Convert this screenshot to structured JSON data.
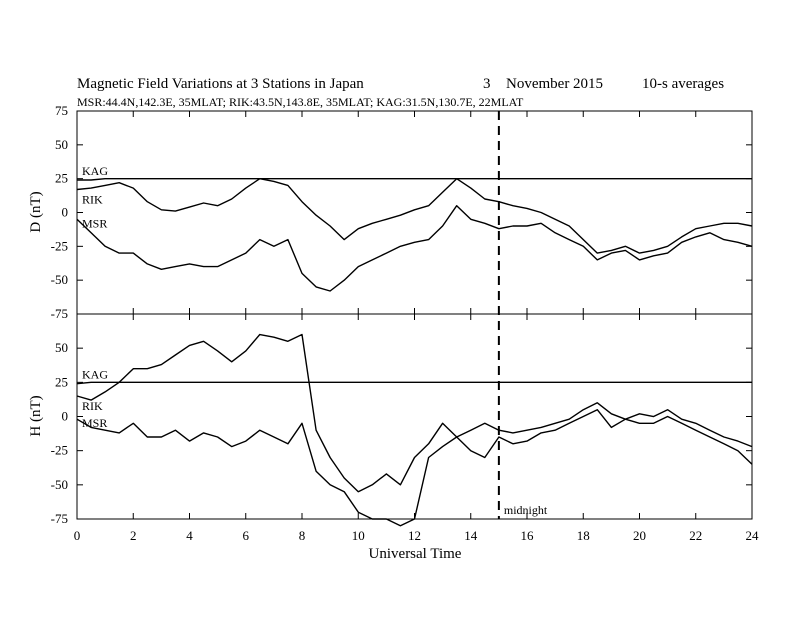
{
  "chart_data": [
    {
      "type": "line",
      "title": "Magnetic Field Variations at 3 Stations in Japan",
      "date_day": "3",
      "date_month_year": "November 2015",
      "averaging": "10-s averages",
      "subtitle": "MSR:44.4N,142.3E, 35MLAT;  RIK:43.5N,143.8E, 35MLAT;  KAG:31.5N,130.7E, 22MLAT",
      "ylabel": "D (nT)",
      "ylim": [
        -75,
        75
      ],
      "yticks": [
        "75",
        "50",
        "25",
        "0",
        "-25",
        "-50",
        "-75"
      ],
      "xlim": [
        0,
        24
      ],
      "x": [
        0,
        0.5,
        1,
        1.5,
        2,
        2.5,
        3,
        3.5,
        4,
        4.5,
        5,
        5.5,
        6,
        6.5,
        7,
        7.5,
        8,
        8.5,
        9,
        9.5,
        10,
        10.5,
        11,
        11.5,
        12,
        12.5,
        13,
        13.5,
        14,
        14.5,
        15,
        15.5,
        16,
        16.5,
        17,
        17.5,
        18,
        18.5,
        19,
        19.5,
        20,
        20.5,
        21,
        21.5,
        22,
        22.5,
        23,
        23.5,
        24
      ],
      "series": [
        {
          "name": "KAG",
          "values": [
            24,
            24,
            25,
            25,
            25,
            25,
            25,
            25,
            25,
            25,
            25,
            25,
            25,
            25,
            25,
            25,
            25,
            25,
            25,
            25,
            25,
            25,
            25,
            25,
            25,
            25,
            25,
            25,
            25,
            25,
            25,
            25,
            25,
            25,
            25,
            25,
            25,
            25,
            25,
            25,
            25,
            25,
            25,
            25,
            25,
            25,
            25,
            25,
            25
          ]
        },
        {
          "name": "RIK",
          "values": [
            17,
            18,
            20,
            22,
            18,
            8,
            2,
            1,
            4,
            7,
            5,
            10,
            18,
            25,
            23,
            20,
            8,
            -2,
            -10,
            -20,
            -12,
            -8,
            -5,
            -2,
            2,
            5,
            15,
            25,
            18,
            10,
            8,
            5,
            3,
            0,
            -5,
            -10,
            -20,
            -30,
            -28,
            -25,
            -30,
            -28,
            -25,
            -18,
            -12,
            -10,
            -8,
            -8,
            -10
          ]
        },
        {
          "name": "MSR",
          "values": [
            -5,
            -15,
            -25,
            -30,
            -30,
            -38,
            -42,
            -40,
            -38,
            -40,
            -40,
            -35,
            -30,
            -20,
            -25,
            -20,
            -45,
            -55,
            -58,
            -50,
            -40,
            -35,
            -30,
            -25,
            -22,
            -20,
            -10,
            5,
            -5,
            -8,
            -12,
            -10,
            -10,
            -8,
            -15,
            -20,
            -25,
            -35,
            -30,
            -28,
            -35,
            -32,
            -30,
            -22,
            -18,
            -15,
            -20,
            -22,
            -25
          ]
        }
      ]
    },
    {
      "type": "line",
      "xlabel": "Universal Time",
      "ylabel": "H (nT)",
      "ylim": [
        -75,
        75
      ],
      "yticks": [
        "50",
        "25",
        "0",
        "-25",
        "-50",
        "-75"
      ],
      "xlim": [
        0,
        24
      ],
      "xticks": [
        "0",
        "2",
        "4",
        "6",
        "8",
        "10",
        "12",
        "14",
        "16",
        "18",
        "20",
        "22",
        "24"
      ],
      "annotation": "midnight",
      "midnight_x": 15,
      "x": [
        0,
        0.5,
        1,
        1.5,
        2,
        2.5,
        3,
        3.5,
        4,
        4.5,
        5,
        5.5,
        6,
        6.5,
        7,
        7.5,
        8,
        8.5,
        9,
        9.5,
        10,
        10.5,
        11,
        11.5,
        12,
        12.5,
        13,
        13.5,
        14,
        14.5,
        15,
        15.5,
        16,
        16.5,
        17,
        17.5,
        18,
        18.5,
        19,
        19.5,
        20,
        20.5,
        21,
        21.5,
        22,
        22.5,
        23,
        23.5,
        24
      ],
      "series": [
        {
          "name": "KAG",
          "values": [
            24,
            25,
            25,
            25,
            25,
            25,
            25,
            25,
            25,
            25,
            25,
            25,
            25,
            25,
            25,
            25,
            25,
            25,
            25,
            25,
            25,
            25,
            25,
            25,
            25,
            25,
            25,
            25,
            25,
            25,
            25,
            25,
            25,
            25,
            25,
            25,
            25,
            25,
            25,
            25,
            25,
            25,
            25,
            25,
            25,
            25,
            25,
            25,
            25
          ]
        },
        {
          "name": "RIK",
          "values": [
            15,
            12,
            18,
            25,
            35,
            35,
            38,
            45,
            52,
            55,
            48,
            40,
            48,
            60,
            58,
            55,
            60,
            -10,
            -30,
            -45,
            -55,
            -50,
            -42,
            -50,
            -30,
            -20,
            -5,
            -15,
            -10,
            -5,
            -10,
            -12,
            -10,
            -8,
            -5,
            -2,
            5,
            10,
            2,
            -2,
            2,
            0,
            5,
            -2,
            -5,
            -10,
            -15,
            -18,
            -22
          ]
        },
        {
          "name": "MSR",
          "values": [
            -2,
            -8,
            -10,
            -12,
            -5,
            -15,
            -15,
            -10,
            -18,
            -12,
            -15,
            -22,
            -18,
            -10,
            -15,
            -20,
            -5,
            -40,
            -50,
            -55,
            -70,
            -75,
            -75,
            -80,
            -75,
            -30,
            -22,
            -15,
            -25,
            -30,
            -15,
            -20,
            -18,
            -12,
            -10,
            -5,
            0,
            5,
            -8,
            -2,
            -5,
            -5,
            0,
            -5,
            -10,
            -15,
            -20,
            -25,
            -35
          ]
        }
      ]
    }
  ]
}
